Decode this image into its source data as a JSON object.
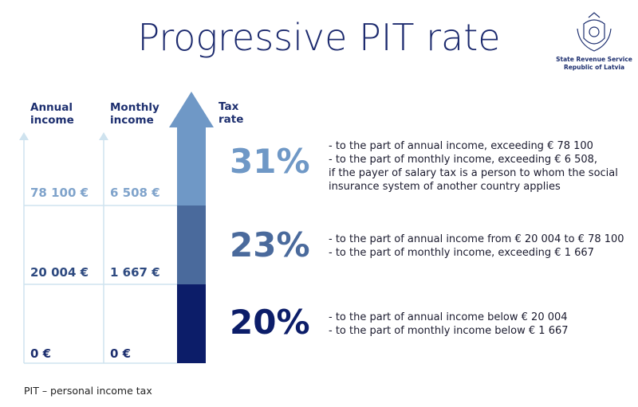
{
  "header": {
    "title": "Progressive PIT rate",
    "logo": [
      "State Revenue Service",
      "Republic of Latvia"
    ]
  },
  "columns": {
    "annual": [
      "Annual",
      "income"
    ],
    "monthly": [
      "Monthly",
      "income"
    ],
    "rate": [
      "Tax",
      "rate"
    ]
  },
  "rows": [
    {
      "annual": "78 100 €",
      "monthly": "6 508 €",
      "rate": "31%",
      "description": [
        "- to the part of annual income, exceeding € 78 100",
        "- to the part of monthly income, exceeding € 6 508,",
        "if the payer of salary tax is a person to whom the social",
        "insurance system of another country applies"
      ]
    },
    {
      "annual": "20 004 €",
      "monthly": "1 667 €",
      "rate": "23%",
      "description": [
        "- to the part of annual income from € 20 004 to € 78 100",
        "- to the part of monthly income, exceeding € 1 667"
      ]
    },
    {
      "annual": "0 €",
      "monthly": "0 €",
      "rate": "20%",
      "description": [
        "- to the part of annual income below € 20 004",
        "- to the part of monthly income below € 1 667"
      ]
    }
  ],
  "footnote": "PIT – personal income tax"
}
